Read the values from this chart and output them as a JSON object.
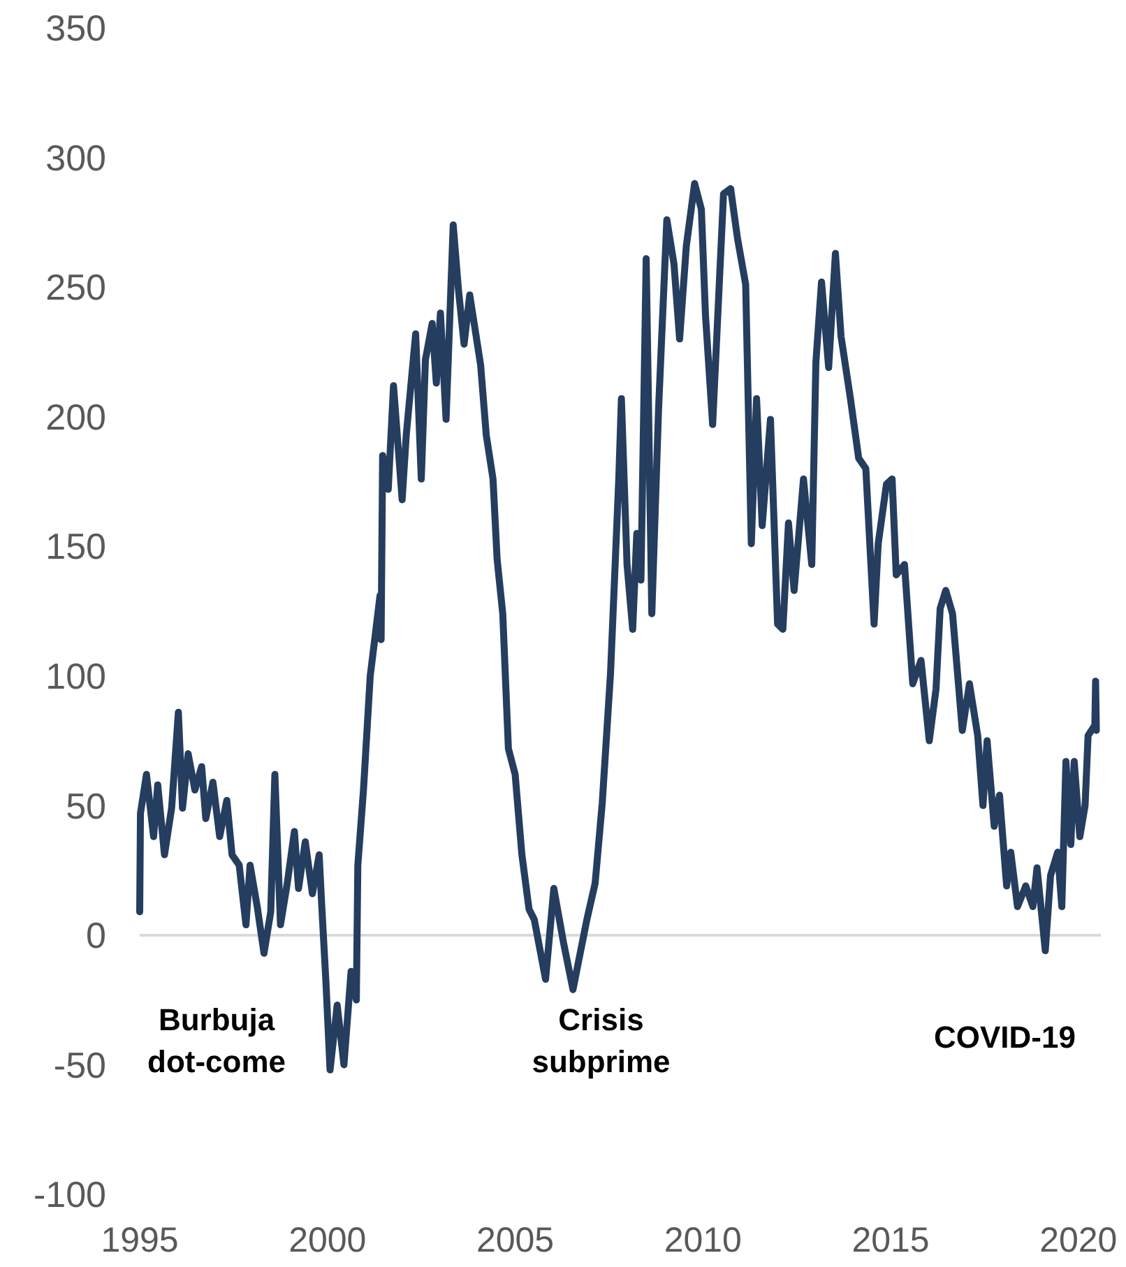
{
  "chart_data": {
    "type": "line",
    "x": [
      1995.0,
      1995.02,
      1995.18,
      1995.37,
      1995.48,
      1995.66,
      1995.85,
      1996.03,
      1996.14,
      1996.29,
      1996.47,
      1996.65,
      1996.76,
      1996.95,
      1997.13,
      1997.32,
      1997.46,
      1997.65,
      1997.83,
      1997.94,
      1998.13,
      1998.31,
      1998.49,
      1998.6,
      1998.75,
      1998.93,
      1999.12,
      1999.23,
      1999.41,
      1999.6,
      1999.78,
      1999.85,
      1999.96,
      2000.07,
      2000.26,
      2000.44,
      2000.63,
      2000.77,
      2000.81,
      2000.96,
      2001.14,
      2001.25,
      2001.4,
      2001.43,
      2001.47,
      2001.62,
      2001.76,
      2001.99,
      2002.1,
      2002.35,
      2002.5,
      2002.61,
      2002.79,
      2002.9,
      2003.01,
      2003.16,
      2003.35,
      2003.49,
      2003.64,
      2003.79,
      2003.93,
      2004.08,
      2004.23,
      2004.41,
      2004.52,
      2004.67,
      2004.82,
      2005.0,
      2005.18,
      2005.37,
      2005.51,
      2005.81,
      2006.03,
      2006.29,
      2006.54,
      2006.91,
      2007.13,
      2007.32,
      2007.54,
      2007.76,
      2007.83,
      2007.98,
      2008.13,
      2008.24,
      2008.35,
      2008.49,
      2008.64,
      2008.82,
      2009.04,
      2009.23,
      2009.38,
      2009.56,
      2009.78,
      2009.96,
      2010.07,
      2010.26,
      2010.55,
      2010.74,
      2010.92,
      2011.14,
      2011.29,
      2011.43,
      2011.58,
      2011.8,
      2011.99,
      2012.13,
      2012.28,
      2012.43,
      2012.68,
      2012.9,
      2013.01,
      2013.16,
      2013.35,
      2013.53,
      2013.68,
      2013.93,
      2014.15,
      2014.34,
      2014.56,
      2014.67,
      2014.89,
      2015.04,
      2015.15,
      2015.37,
      2015.59,
      2015.81,
      2016.03,
      2016.21,
      2016.32,
      2016.47,
      2016.65,
      2016.91,
      2017.1,
      2017.32,
      2017.46,
      2017.57,
      2017.76,
      2017.9,
      2018.09,
      2018.2,
      2018.38,
      2018.6,
      2018.79,
      2018.9,
      2019.12,
      2019.26,
      2019.45,
      2019.56,
      2019.67,
      2019.8,
      2019.89,
      2020.04,
      2020.18,
      2020.26,
      2020.44,
      2020.46,
      2020.48
    ],
    "series": [
      {
        "color": "#253d5e",
        "values": [
          9,
          47,
          62,
          38,
          58,
          31,
          49,
          86,
          49,
          70,
          56,
          65,
          45,
          59,
          38,
          52,
          31,
          27,
          4,
          27,
          11,
          -7,
          9,
          62,
          4,
          20,
          40,
          18,
          36,
          16,
          31,
          11,
          -18,
          -52,
          -27,
          -50,
          -14,
          -25,
          27,
          56,
          100,
          113,
          131,
          114,
          185,
          172,
          212,
          168,
          193,
          232,
          176,
          222,
          236,
          213,
          240,
          199,
          274,
          249,
          228,
          247,
          234,
          220,
          193,
          176,
          145,
          124,
          72,
          62,
          31,
          10,
          6,
          -17,
          18,
          -3,
          -21,
          6,
          20,
          51,
          101,
          176,
          207,
          143,
          118,
          155,
          137,
          261,
          124,
          203,
          276,
          259,
          230,
          266,
          290,
          280,
          239,
          197,
          286,
          288,
          269,
          251,
          151,
          207,
          158,
          199,
          120,
          118,
          159,
          133,
          176,
          143,
          221,
          252,
          219,
          263,
          231,
          207,
          184,
          180,
          120,
          151,
          174,
          176,
          139,
          143,
          97,
          106,
          75,
          95,
          126,
          133,
          124,
          79,
          97,
          77,
          50,
          75,
          42,
          54,
          19,
          32,
          11,
          19,
          11,
          26,
          -6,
          23,
          32,
          11,
          67,
          35,
          67,
          38,
          50,
          77,
          81,
          98,
          79
        ]
      }
    ],
    "xlim": [
      1995,
      2020.6
    ],
    "xticks": [
      1995,
      2000,
      2005,
      2010,
      2015,
      2020
    ],
    "ylim": [
      -100,
      350
    ],
    "yticks": [
      -100,
      -50,
      0,
      50,
      100,
      150,
      200,
      250,
      300,
      350
    ],
    "ref_lines": [
      {
        "axis": "y",
        "value": 0,
        "color": "#d9d9d9"
      }
    ],
    "annotations": [
      "Burbuja dot-come",
      "Crisis subprime",
      "COVID-19"
    ]
  }
}
